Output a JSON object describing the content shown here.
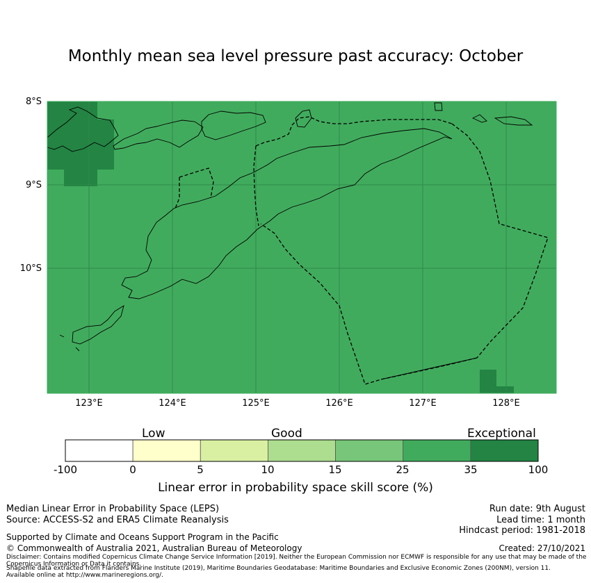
{
  "title": "Monthly mean sea level pressure past accuracy: October",
  "map": {
    "lat_labels": [
      "8°S",
      "9°S",
      "10°S"
    ],
    "lon_labels": [
      "123°E",
      "124°E",
      "125°E",
      "126°E",
      "127°E",
      "128°E"
    ],
    "colors": {
      "ocean": "#41ab5d",
      "dark_cell": "#238443",
      "grid": "#2f8a4a",
      "coast": "#000000"
    }
  },
  "colorbar": {
    "categories": [
      "Low",
      "Good",
      "Exceptional"
    ],
    "ticks": [
      "-100",
      "0",
      "5",
      "10",
      "15",
      "25",
      "35",
      "100"
    ],
    "bins": [
      {
        "from": "-100",
        "to": "0",
        "color": "#ffffff"
      },
      {
        "from": "0",
        "to": "5",
        "color": "#ffffcc"
      },
      {
        "from": "5",
        "to": "10",
        "color": "#d9f0a3"
      },
      {
        "from": "10",
        "to": "15",
        "color": "#addd8e"
      },
      {
        "from": "15",
        "to": "25",
        "color": "#78c679"
      },
      {
        "from": "25",
        "to": "35",
        "color": "#41ab5d"
      },
      {
        "from": "35",
        "to": "100",
        "color": "#238443"
      }
    ],
    "label": "Linear error in probability space skill score (%)"
  },
  "footer": {
    "left1": "Median Linear Error in Probability Space (LEPS)",
    "left2": "Source: ACCESS-S2 and ERA5 Climate Reanalysis",
    "right1": "Run date: 9th August",
    "right2": "Lead time: 1 month",
    "right3": "Hindcast period: 1981-2018",
    "support": "Supported by Climate and Oceans Support Program in the Pacific",
    "copyright": "© Commonwealth of Australia 2021, Australian Bureau of Meteorology",
    "created": "Created: 27/10/2021",
    "disclaimer": "Disclaimer: Contains modified Copernicus Climate Change Service Information [2019]. Neither the European Commission nor ECMWF is responsible for any use that may be made of the Copernicus Information or Data it contains.",
    "shapefile": "Shapefile data extracted from Flanders Marine Institute (2019), Maritime Boundaries Geodatabase: Maritime Boundaries and Exclusive Economic Zones (200NM), version 11. Available online at http://www.marineregions.org/."
  }
}
